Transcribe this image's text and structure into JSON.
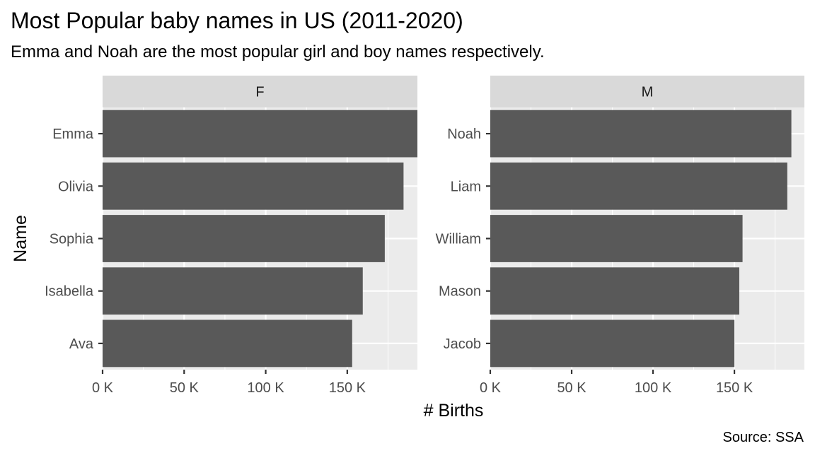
{
  "chart_data": {
    "type": "bar",
    "orientation": "horizontal",
    "title": "Most Popular baby names in US (2011-2020)",
    "subtitle": "Emma and Noah are the most popular girl and boy names respectively.",
    "caption": "Source: SSA",
    "xlabel": "# Births",
    "ylabel": "Name",
    "xlim": [
      0,
      193000
    ],
    "x_ticks": [
      0,
      50000,
      100000,
      150000
    ],
    "x_tick_labels": [
      "0 K",
      "50 K",
      "100 K",
      "150 K"
    ],
    "grid": true,
    "bar_color": "#595959",
    "panel_background": "#ebebeb",
    "strip_background": "#d9d9d9",
    "facets": [
      {
        "label": "F",
        "categories": [
          "Emma",
          "Olivia",
          "Sophia",
          "Isabella",
          "Ava"
        ],
        "values": [
          193000,
          184500,
          173000,
          159500,
          153000
        ]
      },
      {
        "label": "M",
        "categories": [
          "Noah",
          "Liam",
          "William",
          "Mason",
          "Jacob"
        ],
        "values": [
          185000,
          182500,
          155000,
          153000,
          150000
        ]
      }
    ]
  }
}
